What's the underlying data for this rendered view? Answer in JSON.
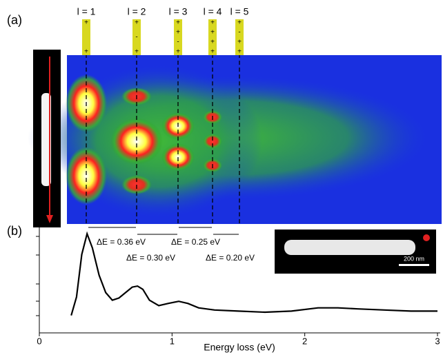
{
  "panel_labels": [
    "(a)",
    "(b)"
  ],
  "mode_labels": [
    "l = 1",
    "l = 2",
    "l = 3",
    "l = 4",
    "l = 5"
  ],
  "mode_signs": [
    [
      "+",
      "+"
    ],
    [
      "+",
      "-",
      "+"
    ],
    [
      "+",
      "+",
      "-",
      "+"
    ],
    [
      "+",
      "+",
      "+",
      "+"
    ],
    [
      "+",
      "-",
      "+",
      "+"
    ]
  ],
  "delta_labels": [
    "ΔE = 0.36 eV",
    "ΔE = 0.30 eV",
    "ΔE = 0.25 eV",
    "ΔE = 0.20 eV"
  ],
  "scale_bar": "200 nm",
  "chart_data": {
    "type": "line",
    "xlabel": "Energy loss (eV)",
    "xlim": [
      0,
      3
    ],
    "xticks": [
      0,
      1,
      2,
      3
    ],
    "ylim": [
      0,
      1
    ],
    "series": [
      {
        "color": "#000000",
        "x": [
          0.24,
          0.28,
          0.32,
          0.36,
          0.4,
          0.45,
          0.5,
          0.55,
          0.6,
          0.65,
          0.7,
          0.74,
          0.78,
          0.83,
          0.9,
          0.97,
          1.05,
          1.12,
          1.2,
          1.32,
          1.5,
          1.7,
          1.9,
          2.1,
          2.25,
          2.4,
          2.6,
          2.8,
          3.0
        ],
        "values": [
          0.16,
          0.33,
          0.72,
          0.91,
          0.78,
          0.53,
          0.37,
          0.3,
          0.32,
          0.37,
          0.42,
          0.43,
          0.4,
          0.3,
          0.25,
          0.27,
          0.29,
          0.27,
          0.23,
          0.21,
          0.2,
          0.19,
          0.2,
          0.23,
          0.23,
          0.22,
          0.21,
          0.2,
          0.2
        ]
      }
    ]
  }
}
